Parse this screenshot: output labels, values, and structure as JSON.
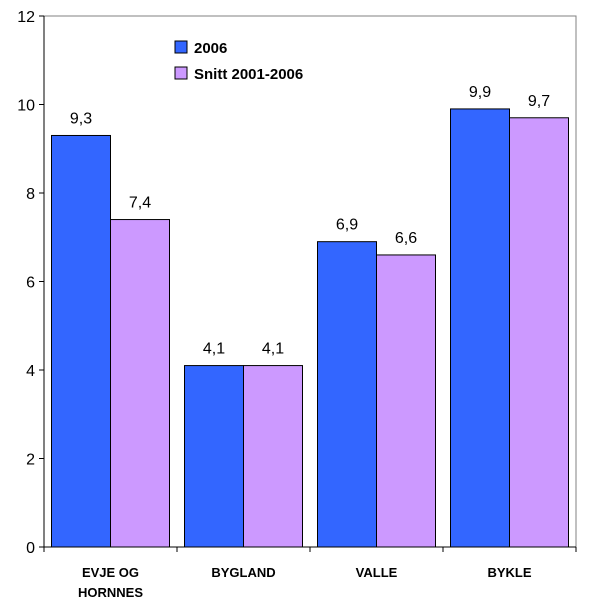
{
  "chart_data": {
    "type": "bar",
    "categories": [
      [
        "EVJE OG",
        "HORNNES"
      ],
      [
        "BYGLAND"
      ],
      [
        "VALLE"
      ],
      [
        "BYKLE"
      ]
    ],
    "series": [
      {
        "name": "2006",
        "values": [
          9.3,
          4.1,
          6.9,
          9.9
        ],
        "labels": [
          "9,3",
          "4,1",
          "6,9",
          "9,9"
        ],
        "color": "#3366ff"
      },
      {
        "name": "Snitt 2001-2006",
        "values": [
          7.4,
          4.1,
          6.6,
          9.7
        ],
        "labels": [
          "7,4",
          "4,1",
          "6,6",
          "9,7"
        ],
        "color": "#cc99ff"
      }
    ],
    "ylim": [
      0,
      12
    ],
    "yticks": [
      0,
      2,
      4,
      6,
      8,
      10,
      12
    ],
    "title": "",
    "xlabel": "",
    "ylabel": "",
    "grid": false,
    "legend": "top-left-inside",
    "bar_edge_color": "#000000"
  }
}
